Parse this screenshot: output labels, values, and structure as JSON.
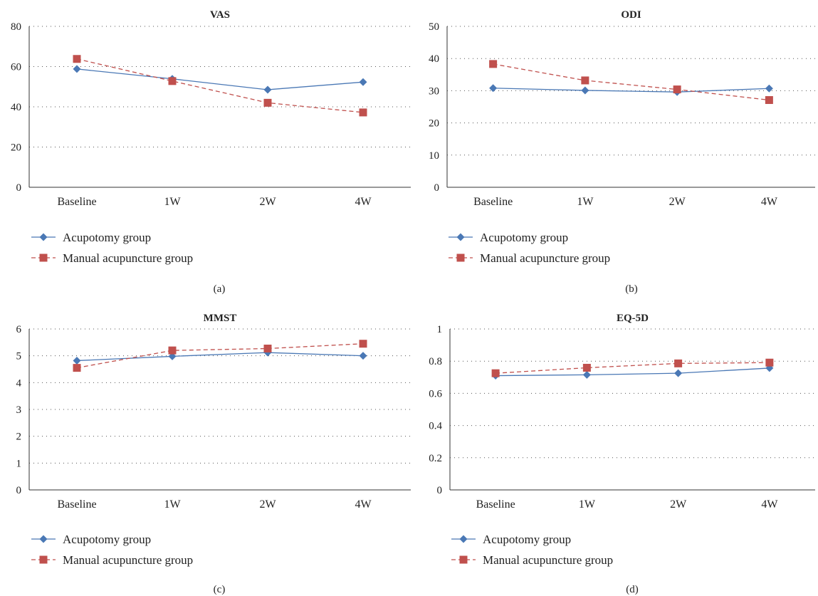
{
  "series_styles": {
    "acupotomy": {
      "color": "#4a78b5",
      "marker": "diamond",
      "dash": "solid"
    },
    "manual": {
      "color": "#c0504d",
      "marker": "square",
      "dash": "dashed"
    }
  },
  "chart_data": [
    {
      "type": "line",
      "panel_label": "(a)",
      "title": "VAS",
      "categories": [
        "Baseline",
        "1W",
        "2W",
        "4W"
      ],
      "ylim": [
        0,
        80
      ],
      "yticks": [
        "0",
        "20",
        "40",
        "60",
        "80"
      ],
      "grid": true,
      "legend_position": "bottom",
      "series": [
        {
          "name": "Acupotomy group",
          "key": "acupotomy",
          "values": [
            58.8,
            53.9,
            48.5,
            52.3
          ]
        },
        {
          "name": "Manual acupuncture group",
          "key": "manual",
          "values": [
            63.8,
            52.8,
            42.0,
            37.2
          ]
        }
      ]
    },
    {
      "type": "line",
      "panel_label": "(b)",
      "title": "ODI",
      "categories": [
        "Baseline",
        "1W",
        "2W",
        "4W"
      ],
      "ylim": [
        0,
        50
      ],
      "yticks": [
        "0",
        "10",
        "20",
        "30",
        "40",
        "50"
      ],
      "grid": true,
      "legend_position": "bottom",
      "series": [
        {
          "name": "Acupotomy group",
          "key": "acupotomy",
          "values": [
            30.8,
            30.1,
            29.6,
            30.7
          ]
        },
        {
          "name": "Manual acupuncture group",
          "key": "manual",
          "values": [
            38.3,
            33.2,
            30.4,
            27.1
          ]
        }
      ]
    },
    {
      "type": "line",
      "panel_label": "(c)",
      "title": "MMST",
      "categories": [
        "Baseline",
        "1W",
        "2W",
        "4W"
      ],
      "ylim": [
        0,
        6
      ],
      "yticks": [
        "0",
        "1",
        "2",
        "3",
        "4",
        "5",
        "6"
      ],
      "grid": true,
      "legend_position": "bottom",
      "series": [
        {
          "name": "Acupotomy group",
          "key": "acupotomy",
          "values": [
            4.82,
            4.98,
            5.12,
            5.0
          ]
        },
        {
          "name": "Manual acupuncture group",
          "key": "manual",
          "values": [
            4.55,
            5.2,
            5.27,
            5.45
          ]
        }
      ]
    },
    {
      "type": "line",
      "panel_label": "(d)",
      "title": "EQ-5D",
      "categories": [
        "Baseline",
        "1W",
        "2W",
        "4W"
      ],
      "ylim": [
        0,
        1
      ],
      "yticks": [
        "0",
        "0.2",
        "0.4",
        "0.6",
        "0.8",
        "1"
      ],
      "grid": true,
      "legend_position": "bottom",
      "series": [
        {
          "name": "Acupotomy group",
          "key": "acupotomy",
          "values": [
            0.71,
            0.715,
            0.725,
            0.757
          ]
        },
        {
          "name": "Manual acupuncture group",
          "key": "manual",
          "values": [
            0.725,
            0.759,
            0.786,
            0.791
          ]
        }
      ]
    }
  ]
}
